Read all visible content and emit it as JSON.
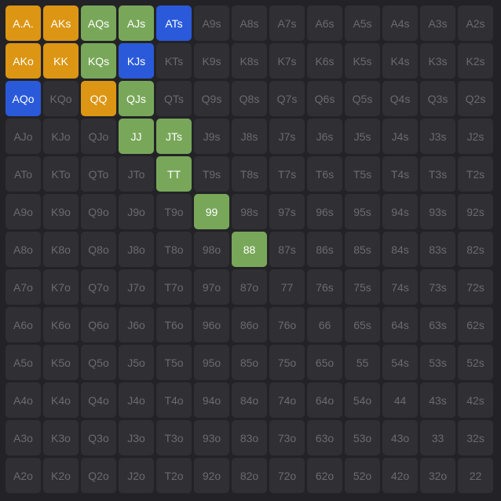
{
  "colors": {
    "raise": "#dc9614",
    "call": "#78a75a",
    "mixed": "#2a5ada",
    "empty": "#303034"
  },
  "grid": [
    [
      "A.A.",
      "AKs",
      "AQs",
      "AJs",
      "ATs",
      "A9s",
      "A8s",
      "A7s",
      "A6s",
      "A5s",
      "A4s",
      "A3s",
      "A2s"
    ],
    [
      "AKo",
      "KK",
      "KQs",
      "KJs",
      "KTs",
      "K9s",
      "K8s",
      "K7s",
      "K6s",
      "K5s",
      "K4s",
      "K3s",
      "K2s"
    ],
    [
      "AQo",
      "KQo",
      "QQ",
      "QJs",
      "QTs",
      "Q9s",
      "Q8s",
      "Q7s",
      "Q6s",
      "Q5s",
      "Q4s",
      "Q3s",
      "Q2s"
    ],
    [
      "AJo",
      "KJo",
      "QJo",
      "JJ",
      "JTs",
      "J9s",
      "J8s",
      "J7s",
      "J6s",
      "J5s",
      "J4s",
      "J3s",
      "J2s"
    ],
    [
      "ATo",
      "KTo",
      "QTo",
      "JTo",
      "TT",
      "T9s",
      "T8s",
      "T7s",
      "T6s",
      "T5s",
      "T4s",
      "T3s",
      "T2s"
    ],
    [
      "A9o",
      "K9o",
      "Q9o",
      "J9o",
      "T9o",
      "99",
      "98s",
      "97s",
      "96s",
      "95s",
      "94s",
      "93s",
      "92s"
    ],
    [
      "A8o",
      "K8o",
      "Q8o",
      "J8o",
      "T8o",
      "98o",
      "88",
      "87s",
      "86s",
      "85s",
      "84s",
      "83s",
      "82s"
    ],
    [
      "A7o",
      "K7o",
      "Q7o",
      "J7o",
      "T7o",
      "97o",
      "87o",
      "77",
      "76s",
      "75s",
      "74s",
      "73s",
      "72s"
    ],
    [
      "A6o",
      "K6o",
      "Q6o",
      "J6o",
      "T6o",
      "96o",
      "86o",
      "76o",
      "66",
      "65s",
      "64s",
      "63s",
      "62s"
    ],
    [
      "A5o",
      "K5o",
      "Q5o",
      "J5o",
      "T5o",
      "95o",
      "85o",
      "75o",
      "65o",
      "55",
      "54s",
      "53s",
      "52s"
    ],
    [
      "A4o",
      "K4o",
      "Q4o",
      "J4o",
      "T4o",
      "94o",
      "84o",
      "74o",
      "64o",
      "54o",
      "44",
      "43s",
      "42s"
    ],
    [
      "A3o",
      "K3o",
      "Q3o",
      "J3o",
      "T3o",
      "93o",
      "83o",
      "73o",
      "63o",
      "53o",
      "43o",
      "33",
      "32s"
    ],
    [
      "A2o",
      "K2o",
      "Q2o",
      "J2o",
      "T2o",
      "92o",
      "82o",
      "72o",
      "62o",
      "52o",
      "42o",
      "32o",
      "22"
    ]
  ],
  "selected": {
    "A.A.": "raise",
    "AKs": "raise",
    "AKo": "raise",
    "KK": "raise",
    "QQ": "raise",
    "AQs": "call",
    "AJs": "call",
    "KQs": "call",
    "QJs": "call",
    "JJ": "call",
    "JTs": "call",
    "TT": "call",
    "99": "call",
    "88": "call",
    "ATs": "mixed",
    "KJs": "mixed",
    "AQo": "mixed"
  }
}
